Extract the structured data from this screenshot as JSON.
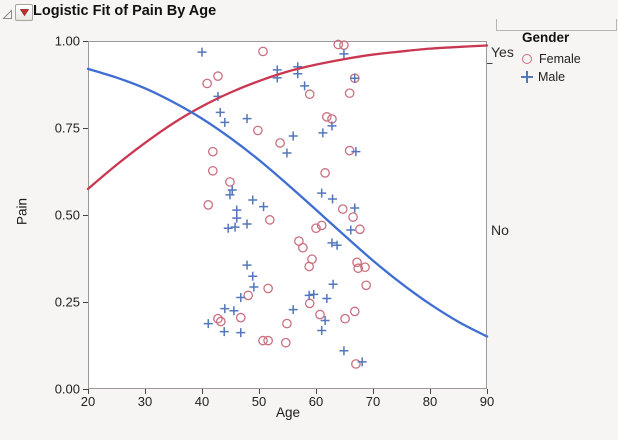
{
  "chart_data": {
    "type": "scatter",
    "title": "Logistic Fit of Pain By Age",
    "xlabel": "Age",
    "ylabel": "Pain",
    "xlim": [
      20,
      90
    ],
    "ylim": [
      0,
      1
    ],
    "grid": false,
    "x_ticks": [
      20,
      30,
      40,
      50,
      60,
      70,
      80,
      90
    ],
    "y_ticks": [
      {
        "value": 1.0,
        "label": "1.00"
      },
      {
        "value": 0.75,
        "label": "0.75"
      },
      {
        "value": 0.5,
        "label": "0.50"
      },
      {
        "value": 0.25,
        "label": "0.25"
      },
      {
        "value": 0.0,
        "label": "0.00"
      }
    ],
    "right_axis": {
      "tick_value": 0.937,
      "labels": [
        {
          "text": "Yes",
          "value": 0.968
        },
        {
          "text": "No",
          "value": 0.457
        }
      ]
    },
    "legend": {
      "title": "Gender",
      "position": "right-top",
      "items": [
        {
          "label": "Female",
          "marker": "circle",
          "color": "#c9707f"
        },
        {
          "label": "Male",
          "marker": "plus",
          "color": "#5377bb"
        }
      ]
    },
    "series": [
      {
        "name": "Female",
        "marker": "circle",
        "color": "#c9707f",
        "points": [
          [
            50.7,
            0.97
          ],
          [
            63.9,
            0.99
          ],
          [
            64.9,
            0.988
          ],
          [
            42.8,
            0.899
          ],
          [
            40.9,
            0.878
          ],
          [
            66.8,
            0.893
          ],
          [
            58.9,
            0.847
          ],
          [
            65.9,
            0.85
          ],
          [
            61.9,
            0.782
          ],
          [
            62.8,
            0.776
          ],
          [
            49.8,
            0.743
          ],
          [
            53.7,
            0.707
          ],
          [
            41.9,
            0.682
          ],
          [
            65.9,
            0.685
          ],
          [
            41.9,
            0.627
          ],
          [
            61.6,
            0.621
          ],
          [
            44.9,
            0.595
          ],
          [
            41.1,
            0.529
          ],
          [
            64.7,
            0.517
          ],
          [
            66.5,
            0.494
          ],
          [
            51.9,
            0.486
          ],
          [
            61.0,
            0.47
          ],
          [
            60.0,
            0.462
          ],
          [
            67.7,
            0.459
          ],
          [
            57.0,
            0.425
          ],
          [
            57.7,
            0.406
          ],
          [
            59.3,
            0.373
          ],
          [
            58.8,
            0.352
          ],
          [
            67.2,
            0.364
          ],
          [
            68.6,
            0.35
          ],
          [
            67.4,
            0.347
          ],
          [
            68.8,
            0.298
          ],
          [
            51.6,
            0.289
          ],
          [
            48.1,
            0.269
          ],
          [
            58.9,
            0.246
          ],
          [
            66.8,
            0.223
          ],
          [
            60.7,
            0.214
          ],
          [
            46.8,
            0.205
          ],
          [
            65.1,
            0.202
          ],
          [
            42.8,
            0.202
          ],
          [
            43.3,
            0.194
          ],
          [
            54.9,
            0.188
          ],
          [
            50.7,
            0.139
          ],
          [
            51.6,
            0.139
          ],
          [
            54.7,
            0.133
          ],
          [
            67.0,
            0.072
          ]
        ]
      },
      {
        "name": "Male",
        "marker": "plus",
        "color": "#5377bb",
        "points": [
          [
            40.0,
            0.968
          ],
          [
            64.9,
            0.963
          ],
          [
            56.8,
            0.926
          ],
          [
            56.8,
            0.906
          ],
          [
            53.2,
            0.917
          ],
          [
            53.2,
            0.894
          ],
          [
            66.8,
            0.893
          ],
          [
            58.0,
            0.871
          ],
          [
            42.8,
            0.841
          ],
          [
            43.2,
            0.795
          ],
          [
            47.9,
            0.777
          ],
          [
            44.0,
            0.766
          ],
          [
            62.8,
            0.756
          ],
          [
            61.2,
            0.736
          ],
          [
            56.0,
            0.727
          ],
          [
            54.9,
            0.678
          ],
          [
            67.0,
            0.682
          ],
          [
            45.3,
            0.572
          ],
          [
            61.0,
            0.563
          ],
          [
            44.9,
            0.558
          ],
          [
            62.9,
            0.546
          ],
          [
            48.9,
            0.543
          ],
          [
            50.8,
            0.524
          ],
          [
            66.8,
            0.52
          ],
          [
            46.1,
            0.514
          ],
          [
            46.1,
            0.491
          ],
          [
            47.9,
            0.474
          ],
          [
            45.8,
            0.465
          ],
          [
            44.6,
            0.462
          ],
          [
            66.1,
            0.457
          ],
          [
            62.8,
            0.42
          ],
          [
            63.7,
            0.413
          ],
          [
            47.9,
            0.356
          ],
          [
            48.9,
            0.324
          ],
          [
            63.0,
            0.301
          ],
          [
            49.1,
            0.293
          ],
          [
            59.6,
            0.272
          ],
          [
            58.8,
            0.269
          ],
          [
            46.8,
            0.263
          ],
          [
            61.9,
            0.26
          ],
          [
            44.0,
            0.231
          ],
          [
            56.0,
            0.228
          ],
          [
            45.6,
            0.225
          ],
          [
            61.6,
            0.197
          ],
          [
            41.1,
            0.188
          ],
          [
            61.0,
            0.168
          ],
          [
            43.9,
            0.165
          ],
          [
            46.8,
            0.162
          ],
          [
            64.9,
            0.11
          ],
          [
            68.1,
            0.078
          ]
        ]
      }
    ],
    "curves": [
      {
        "name": "Female fit",
        "color": "#c93750",
        "samples": [
          [
            20,
            0.575
          ],
          [
            25,
            0.644
          ],
          [
            30,
            0.707
          ],
          [
            35,
            0.764
          ],
          [
            40,
            0.812
          ],
          [
            45,
            0.852
          ],
          [
            50,
            0.885
          ],
          [
            55,
            0.912
          ],
          [
            60,
            0.932
          ],
          [
            65,
            0.948
          ],
          [
            70,
            0.961
          ],
          [
            75,
            0.97
          ],
          [
            80,
            0.978
          ],
          [
            85,
            0.983
          ],
          [
            90,
            0.987
          ]
        ]
      },
      {
        "name": "Male fit",
        "color": "#3f6ed2",
        "samples": [
          [
            20,
            0.92
          ],
          [
            25,
            0.895
          ],
          [
            30,
            0.864
          ],
          [
            35,
            0.824
          ],
          [
            40,
            0.777
          ],
          [
            45,
            0.721
          ],
          [
            50,
            0.658
          ],
          [
            55,
            0.588
          ],
          [
            60,
            0.515
          ],
          [
            65,
            0.441
          ],
          [
            70,
            0.369
          ],
          [
            75,
            0.303
          ],
          [
            80,
            0.244
          ],
          [
            85,
            0.193
          ],
          [
            90,
            0.151
          ]
        ]
      }
    ],
    "plot_style": {
      "background": "#ffffff",
      "border_color": "#9a9a9a",
      "tick_color": "#444444",
      "tick_label_color": "#222222"
    }
  }
}
